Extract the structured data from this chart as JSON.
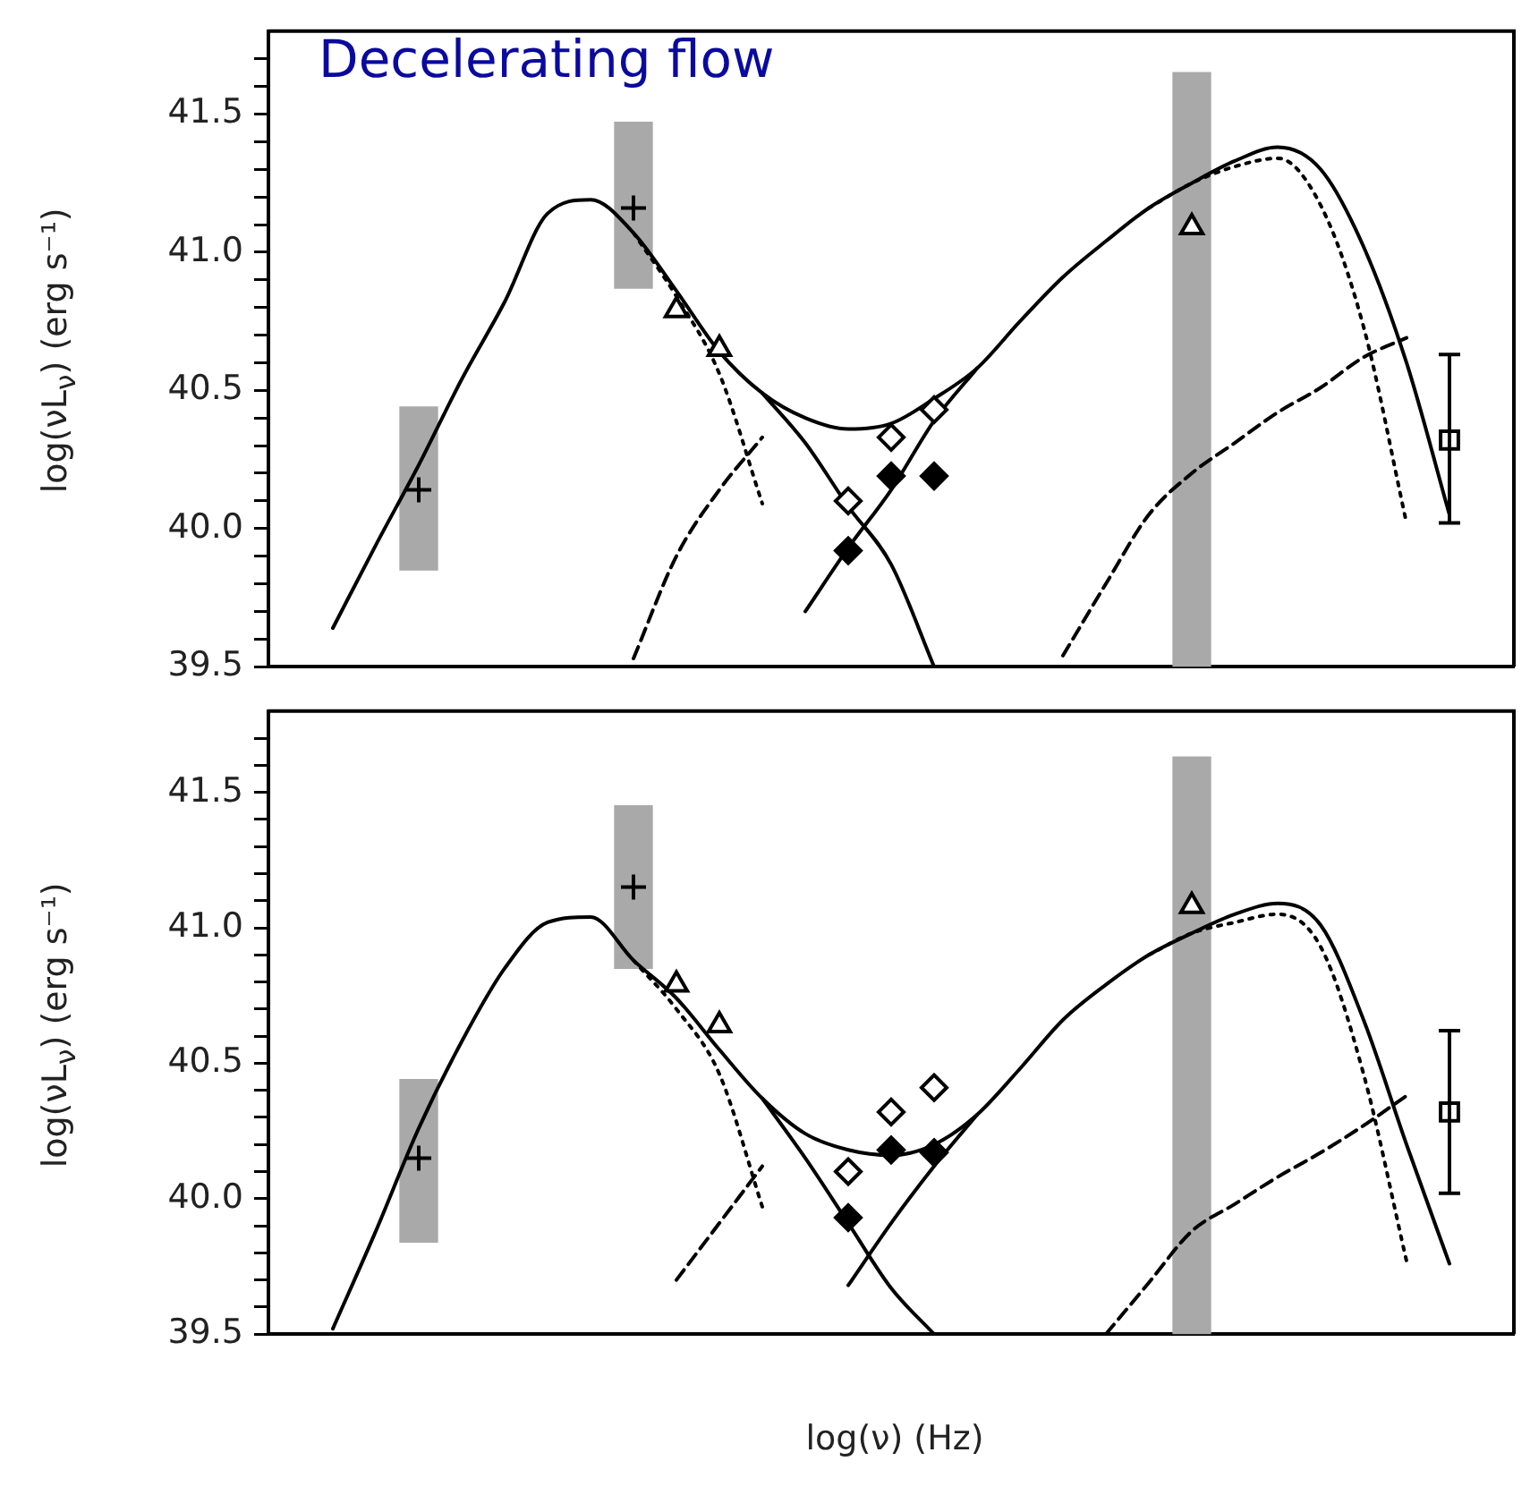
{
  "chart_data": [
    {
      "type": "line",
      "title": "Decelerating flow",
      "ylabel": "log(νL$_{ν}$) (erg s⁻¹)",
      "tick_labels": "y",
      "ylim": [
        39.5,
        41.8
      ],
      "yticks": [
        39.5,
        {
          "value": 39.6,
          "label": null
        },
        {
          "value": 39.7,
          "label": null
        },
        {
          "value": 39.8,
          "label": null
        },
        {
          "value": 39.9,
          "label": null
        },
        {
          "value": 40,
          "label": "40.0"
        },
        {
          "value": 40.1,
          "label": null
        },
        {
          "value": 40.2,
          "label": null
        },
        {
          "value": 40.3,
          "label": null
        },
        {
          "value": 40.4,
          "label": null
        },
        40.5,
        {
          "value": 40.6,
          "label": null
        },
        {
          "value": 40.7,
          "label": null
        },
        {
          "value": 40.8,
          "label": null
        },
        {
          "value": 40.9,
          "label": null
        },
        {
          "value": 41,
          "label": "41.0"
        },
        {
          "value": 41.1,
          "label": null
        },
        {
          "value": 41.2,
          "label": null
        },
        {
          "value": 41.3,
          "label": null
        },
        {
          "value": 41.4,
          "label": null
        },
        41.5,
        {
          "value": 41.6,
          "label": null
        },
        {
          "value": 41.7,
          "label": null
        }
      ],
      "categories": [
        null,
        null,
        null,
        null,
        null,
        null,
        null,
        null,
        null,
        null,
        null,
        null,
        null,
        null,
        null,
        null,
        null,
        null,
        null,
        null,
        null,
        null,
        null,
        null,
        null,
        null,
        null,
        null,
        null
      ],
      "series": [
        {
          "type": "bar",
          "color": "#a9a9a9",
          "base": [
            null,
            null,
            null,
            39.85,
            null,
            null,
            null,
            null,
            40.87,
            null,
            null,
            null,
            null,
            null,
            null,
            null,
            null,
            null,
            null,
            null,
            null,
            39.5,
            null,
            null,
            null,
            null,
            null,
            null,
            null
          ],
          "values": [
            null,
            null,
            null,
            0.59,
            null,
            null,
            null,
            null,
            0.6,
            null,
            null,
            null,
            null,
            null,
            null,
            null,
            null,
            null,
            null,
            null,
            null,
            2.15,
            null,
            null,
            null,
            null,
            null,
            null,
            null
          ]
        },
        {
          "color": "#000000",
          "line_style": "solid",
          "values": [
            null,
            39.64,
            39.94,
            40.23,
            40.54,
            40.82,
            41.14,
            41.19,
            41.07,
            40.86,
            40.64,
            40.49,
            40.4,
            40.36,
            40.38,
            40.47,
            40.58,
            40.75,
            40.91,
            41.04,
            41.16,
            41.25,
            41.33,
            41.38,
            41.3,
            41.02,
            40.6,
            40.05,
            null
          ]
        },
        {
          "color": "#000000",
          "line_style": "solid",
          "values": [
            null,
            null,
            null,
            null,
            null,
            null,
            null,
            null,
            null,
            null,
            null,
            40.49,
            40.31,
            40.08,
            39.87,
            39.5,
            null,
            null,
            null,
            null,
            null,
            null,
            null,
            null,
            null,
            null,
            null,
            null,
            null
          ]
        },
        {
          "color": "#000000",
          "line_style": "solid",
          "values": [
            null,
            null,
            null,
            null,
            null,
            null,
            null,
            null,
            null,
            null,
            null,
            null,
            39.7,
            39.93,
            40.14,
            40.39,
            40.58,
            null,
            null,
            null,
            null,
            null,
            null,
            null,
            null,
            null,
            null,
            null,
            null
          ]
        },
        {
          "color": "#000000",
          "line_style": "dotted",
          "values": [
            null,
            null,
            null,
            null,
            null,
            null,
            null,
            null,
            41.07,
            40.84,
            40.56,
            40.09,
            null,
            null,
            null,
            null,
            null,
            null,
            null,
            null,
            null,
            null,
            null,
            null,
            null,
            null,
            null,
            null,
            null
          ]
        },
        {
          "color": "#000000",
          "line_style": "dotted",
          "values": [
            null,
            null,
            null,
            null,
            null,
            null,
            null,
            null,
            null,
            null,
            null,
            null,
            null,
            null,
            null,
            null,
            null,
            null,
            null,
            null,
            41.16,
            41.25,
            41.31,
            41.34,
            41.17,
            40.73,
            40.02,
            null,
            null
          ]
        },
        {
          "color": "#000000",
          "line_style": "dashed",
          "values": [
            null,
            null,
            null,
            null,
            null,
            null,
            null,
            null,
            39.53,
            39.9,
            40.14,
            40.33,
            null,
            null,
            null,
            null,
            null,
            null,
            null,
            null,
            null,
            null,
            null,
            null,
            null,
            null,
            null,
            null,
            null
          ]
        },
        {
          "color": "#000000",
          "line_style": "dashed",
          "values": [
            null,
            null,
            null,
            null,
            null,
            null,
            null,
            null,
            null,
            null,
            null,
            null,
            null,
            null,
            null,
            null,
            null,
            null,
            39.54,
            39.8,
            40.05,
            40.2,
            40.31,
            40.42,
            40.51,
            40.62,
            40.69,
            null,
            null
          ]
        },
        {
          "type": "scatter",
          "color": "#000000",
          "marker": "cross",
          "values": [
            null,
            null,
            null,
            40.14,
            null,
            null,
            null,
            null,
            41.16,
            null,
            null,
            null,
            null,
            null,
            null,
            null,
            null,
            null,
            null,
            null,
            null,
            null,
            null,
            null,
            null,
            null,
            null,
            null,
            null
          ]
        },
        {
          "type": "scatter",
          "color": "#ffffff",
          "marker": "triangle",
          "values": [
            null,
            null,
            null,
            null,
            null,
            null,
            null,
            null,
            null,
            40.79,
            40.65,
            null,
            null,
            null,
            null,
            null,
            null,
            null,
            null,
            null,
            null,
            41.09,
            null,
            null,
            null,
            null,
            null,
            null,
            null
          ]
        },
        {
          "type": "scatter",
          "color": "#ffffff",
          "marker": "diamond",
          "values": [
            null,
            null,
            null,
            null,
            null,
            null,
            null,
            null,
            null,
            null,
            null,
            null,
            null,
            40.1,
            40.33,
            40.43,
            null,
            null,
            null,
            null,
            null,
            null,
            null,
            null,
            null,
            null,
            null,
            null,
            null
          ]
        },
        {
          "type": "scatter",
          "color": "#000000",
          "marker": "diamond",
          "values": [
            null,
            null,
            null,
            null,
            null,
            null,
            null,
            null,
            null,
            null,
            null,
            null,
            null,
            39.92,
            40.19,
            40.19,
            null,
            null,
            null,
            null,
            null,
            null,
            null,
            null,
            null,
            null,
            null,
            null,
            null
          ]
        },
        {
          "type": "scatter",
          "color": "#ffffff",
          "marker": "square",
          "values": [
            null,
            null,
            null,
            null,
            null,
            null,
            null,
            null,
            null,
            null,
            null,
            null,
            null,
            null,
            null,
            null,
            null,
            null,
            null,
            null,
            null,
            null,
            null,
            null,
            null,
            null,
            null,
            40.32,
            null
          ],
          "errors": [
            null,
            null,
            null,
            null,
            null,
            null,
            null,
            null,
            null,
            null,
            null,
            null,
            null,
            null,
            null,
            null,
            null,
            null,
            null,
            null,
            null,
            null,
            null,
            null,
            null,
            null,
            null,
            [
              40.02,
              40.63
            ],
            null
          ]
        }
      ]
    },
    {
      "type": "line",
      "xlabel": "log(ν) (Hz)",
      "ylabel": "log(νL$_{ν}$) (erg s⁻¹)",
      "tick_labels": "y",
      "ylim": [
        39.5,
        41.8
      ],
      "yticks": [
        39.5,
        {
          "value": 39.6,
          "label": null
        },
        {
          "value": 39.7,
          "label": null
        },
        {
          "value": 39.8,
          "label": null
        },
        {
          "value": 39.9,
          "label": null
        },
        {
          "value": 40,
          "label": "40.0"
        },
        {
          "value": 40.1,
          "label": null
        },
        {
          "value": 40.2,
          "label": null
        },
        {
          "value": 40.3,
          "label": null
        },
        {
          "value": 40.4,
          "label": null
        },
        40.5,
        {
          "value": 40.6,
          "label": null
        },
        {
          "value": 40.7,
          "label": null
        },
        {
          "value": 40.8,
          "label": null
        },
        {
          "value": 40.9,
          "label": null
        },
        {
          "value": 41,
          "label": "41.0"
        },
        {
          "value": 41.1,
          "label": null
        },
        {
          "value": 41.2,
          "label": null
        },
        {
          "value": 41.3,
          "label": null
        },
        {
          "value": 41.4,
          "label": null
        },
        41.5,
        {
          "value": 41.6,
          "label": null
        },
        {
          "value": 41.7,
          "label": null
        }
      ],
      "categories": [
        null,
        null,
        null,
        null,
        null,
        null,
        null,
        null,
        null,
        null,
        null,
        null,
        null,
        null,
        null,
        null,
        null,
        null,
        null,
        null,
        null,
        null,
        null,
        null,
        null,
        null,
        null,
        null,
        null
      ],
      "series": [
        {
          "type": "bar",
          "color": "#a9a9a9",
          "base": [
            null,
            null,
            null,
            39.84,
            null,
            null,
            null,
            null,
            40.85,
            null,
            null,
            null,
            null,
            null,
            null,
            null,
            null,
            null,
            null,
            null,
            null,
            39.5,
            null,
            null,
            null,
            null,
            null,
            null,
            null
          ],
          "values": [
            null,
            null,
            null,
            0.6,
            null,
            null,
            null,
            null,
            0.6,
            null,
            null,
            null,
            null,
            null,
            null,
            null,
            null,
            null,
            null,
            null,
            null,
            2.13,
            null,
            null,
            null,
            null,
            null,
            null,
            null
          ]
        },
        {
          "color": "#000000",
          "line_style": "solid",
          "values": [
            null,
            39.52,
            39.88,
            40.26,
            40.58,
            40.85,
            41.02,
            41.04,
            40.88,
            40.74,
            40.55,
            40.37,
            40.24,
            40.18,
            40.16,
            40.2,
            40.31,
            40.48,
            40.66,
            40.79,
            40.9,
            40.98,
            41.05,
            41.09,
            41.01,
            40.66,
            40.2,
            39.76,
            null
          ]
        },
        {
          "color": "#000000",
          "line_style": "solid",
          "values": [
            null,
            null,
            null,
            null,
            null,
            null,
            null,
            null,
            null,
            null,
            null,
            40.37,
            40.15,
            39.91,
            39.67,
            39.5,
            null,
            null,
            null,
            null,
            null,
            null,
            null,
            null,
            null,
            null,
            null,
            null,
            null
          ]
        },
        {
          "color": "#000000",
          "line_style": "solid",
          "values": [
            null,
            null,
            null,
            null,
            null,
            null,
            null,
            null,
            null,
            null,
            null,
            null,
            null,
            39.68,
            39.91,
            40.12,
            40.31,
            null,
            null,
            null,
            null,
            null,
            null,
            null,
            null,
            null,
            null,
            null,
            null
          ]
        },
        {
          "color": "#000000",
          "line_style": "dotted",
          "values": [
            null,
            null,
            null,
            null,
            null,
            null,
            null,
            null,
            40.88,
            40.7,
            40.46,
            39.97,
            null,
            null,
            null,
            null,
            null,
            null,
            null,
            null,
            null,
            null,
            null,
            null,
            null,
            null,
            null,
            null,
            null
          ]
        },
        {
          "color": "#000000",
          "line_style": "dotted",
          "values": [
            null,
            null,
            null,
            null,
            null,
            null,
            null,
            null,
            null,
            null,
            null,
            null,
            null,
            null,
            null,
            null,
            null,
            null,
            null,
            null,
            40.9,
            40.98,
            41.02,
            41.05,
            40.93,
            40.46,
            39.77,
            null,
            null
          ]
        },
        {
          "color": "#000000",
          "line_style": "dashed",
          "values": [
            null,
            null,
            null,
            null,
            null,
            null,
            null,
            null,
            null,
            39.7,
            39.91,
            40.12,
            null,
            null,
            null,
            null,
            null,
            null,
            null,
            null,
            null,
            null,
            null,
            null,
            null,
            null,
            null,
            null,
            null
          ]
        },
        {
          "color": "#000000",
          "line_style": "dashed",
          "values": [
            null,
            null,
            null,
            null,
            null,
            null,
            null,
            null,
            null,
            null,
            null,
            null,
            null,
            null,
            null,
            null,
            null,
            null,
            null,
            39.5,
            39.69,
            39.88,
            39.98,
            40.08,
            40.17,
            40.27,
            40.38,
            null,
            null
          ]
        },
        {
          "type": "scatter",
          "color": "#000000",
          "marker": "cross",
          "values": [
            null,
            null,
            null,
            40.15,
            null,
            null,
            null,
            null,
            41.15,
            null,
            null,
            null,
            null,
            null,
            null,
            null,
            null,
            null,
            null,
            null,
            null,
            null,
            null,
            null,
            null,
            null,
            null,
            null,
            null
          ]
        },
        {
          "type": "scatter",
          "color": "#ffffff",
          "marker": "triangle",
          "values": [
            null,
            null,
            null,
            null,
            null,
            null,
            null,
            null,
            null,
            40.79,
            40.64,
            null,
            null,
            null,
            null,
            null,
            null,
            null,
            null,
            null,
            null,
            41.08,
            null,
            null,
            null,
            null,
            null,
            null,
            null
          ]
        },
        {
          "type": "scatter",
          "color": "#ffffff",
          "marker": "diamond",
          "values": [
            null,
            null,
            null,
            null,
            null,
            null,
            null,
            null,
            null,
            null,
            null,
            null,
            null,
            40.1,
            40.32,
            40.41,
            null,
            null,
            null,
            null,
            null,
            null,
            null,
            null,
            null,
            null,
            null,
            null,
            null
          ]
        },
        {
          "type": "scatter",
          "color": "#000000",
          "marker": "diamond",
          "values": [
            null,
            null,
            null,
            null,
            null,
            null,
            null,
            null,
            null,
            null,
            null,
            null,
            null,
            39.93,
            40.18,
            40.17,
            null,
            null,
            null,
            null,
            null,
            null,
            null,
            null,
            null,
            null,
            null,
            null,
            null
          ]
        },
        {
          "type": "scatter",
          "color": "#ffffff",
          "marker": "square",
          "values": [
            null,
            null,
            null,
            null,
            null,
            null,
            null,
            null,
            null,
            null,
            null,
            null,
            null,
            null,
            null,
            null,
            null,
            null,
            null,
            null,
            null,
            null,
            null,
            null,
            null,
            null,
            null,
            40.32,
            null
          ],
          "errors": [
            null,
            null,
            null,
            null,
            null,
            null,
            null,
            null,
            null,
            null,
            null,
            null,
            null,
            null,
            null,
            null,
            null,
            null,
            null,
            null,
            null,
            null,
            null,
            null,
            null,
            null,
            null,
            [
              40.02,
              40.62
            ],
            null
          ]
        }
      ]
    }
  ]
}
